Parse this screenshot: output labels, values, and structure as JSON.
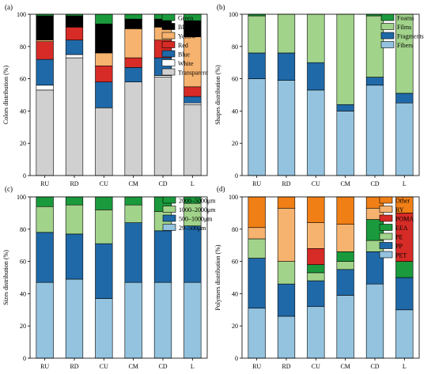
{
  "chart_data": [
    {
      "panel_label": "(a)",
      "type": "bar",
      "stacked": true,
      "ylabel": "Colors distribution (%)",
      "ylim": [
        0,
        100
      ],
      "yticks": [
        "0",
        "20",
        "40",
        "60",
        "80",
        "100"
      ],
      "categories": [
        "RU",
        "RD",
        "CU",
        "CM",
        "CD",
        "L"
      ],
      "legend_position": "top-right",
      "series": [
        {
          "name": "Transparent",
          "color": "#d0d0d0",
          "values": [
            53,
            73,
            42,
            58,
            61,
            44
          ]
        },
        {
          "name": "White",
          "color": "#ffffff",
          "values": [
            3,
            2,
            0,
            0,
            1,
            1
          ]
        },
        {
          "name": "Blue",
          "color": "#1f69a8",
          "values": [
            16,
            9,
            16,
            9,
            11,
            4
          ]
        },
        {
          "name": "Red",
          "color": "#d62b26",
          "values": [
            11,
            8,
            10,
            6,
            11,
            6
          ]
        },
        {
          "name": "Yellow",
          "color": "#f6b36f",
          "values": [
            1,
            0,
            8,
            18,
            8,
            31
          ]
        },
        {
          "name": "Black",
          "color": "#000000",
          "values": [
            15,
            7,
            18,
            6,
            5,
            10
          ]
        },
        {
          "name": "Green",
          "color": "#1a9a3c",
          "values": [
            1,
            1,
            6,
            3,
            3,
            4
          ]
        }
      ]
    },
    {
      "panel_label": "(b)",
      "type": "bar",
      "stacked": true,
      "ylabel": "Shapes distribution (%)",
      "ylim": [
        0,
        100
      ],
      "yticks": [
        "0",
        "20",
        "40",
        "60",
        "80",
        "100"
      ],
      "categories": [
        "RU",
        "RD",
        "CU",
        "CM",
        "CD",
        "L"
      ],
      "legend_position": "top-right",
      "series": [
        {
          "name": "Fibers",
          "color": "#94c3df",
          "values": [
            60,
            59,
            53,
            40,
            56,
            45
          ]
        },
        {
          "name": "Fragments",
          "color": "#1f69a8",
          "values": [
            16,
            17,
            17,
            4,
            5,
            6
          ]
        },
        {
          "name": "Films",
          "color": "#a1d38a",
          "values": [
            23,
            24,
            30,
            56,
            38,
            49
          ]
        },
        {
          "name": "Foams",
          "color": "#1a9a3c",
          "values": [
            1,
            0,
            0,
            0,
            1,
            0
          ]
        }
      ]
    },
    {
      "panel_label": "(c)",
      "type": "bar",
      "stacked": true,
      "ylabel": "Sizes distribution (%)",
      "ylim": [
        0,
        100
      ],
      "yticks": [
        "0",
        "20",
        "40",
        "60",
        "80",
        "100"
      ],
      "categories": [
        "RU",
        "RD",
        "CU",
        "CM",
        "CD",
        "L"
      ],
      "legend_position": "top-right",
      "series": [
        {
          "name": "29–500μm",
          "color": "#94c3df",
          "values": [
            47,
            49,
            37,
            47,
            47,
            47
          ]
        },
        {
          "name": "500–1000μm",
          "color": "#1f69a8",
          "values": [
            31,
            28,
            34,
            37,
            32,
            35
          ]
        },
        {
          "name": "1000–2000μm",
          "color": "#a1d38a",
          "values": [
            16,
            18,
            21,
            11,
            12,
            14
          ]
        },
        {
          "name": "2000–5000μm",
          "color": "#1a9a3c",
          "values": [
            6,
            5,
            8,
            5,
            9,
            4
          ]
        }
      ]
    },
    {
      "panel_label": "(d)",
      "type": "bar",
      "stacked": true,
      "ylabel": "Polymers distribution (%)",
      "ylim": [
        0,
        100
      ],
      "yticks": [
        "0",
        "20",
        "40",
        "60",
        "80",
        "100"
      ],
      "categories": [
        "RU",
        "RD",
        "CU",
        "CM",
        "CD",
        "L"
      ],
      "legend_position": "top-right",
      "series": [
        {
          "name": "PET",
          "color": "#94c3df",
          "values": [
            31,
            26,
            32,
            39,
            46,
            30
          ]
        },
        {
          "name": "PP",
          "color": "#1f69a8",
          "values": [
            31,
            20,
            16,
            16,
            20,
            20
          ]
        },
        {
          "name": "PE",
          "color": "#a1d38a",
          "values": [
            12,
            14,
            5,
            5,
            7,
            0
          ]
        },
        {
          "name": "EEA",
          "color": "#1a9a3c",
          "values": [
            0,
            0,
            5,
            6,
            13,
            10
          ]
        },
        {
          "name": "POMA",
          "color": "#d62b26",
          "values": [
            0,
            0,
            10,
            0,
            0,
            30
          ]
        },
        {
          "name": "RY",
          "color": "#f6b36f",
          "values": [
            7,
            33,
            16,
            17,
            7,
            0
          ]
        },
        {
          "name": "Other",
          "color": "#f07f16",
          "values": [
            19,
            7,
            16,
            17,
            7,
            10
          ]
        }
      ]
    }
  ]
}
